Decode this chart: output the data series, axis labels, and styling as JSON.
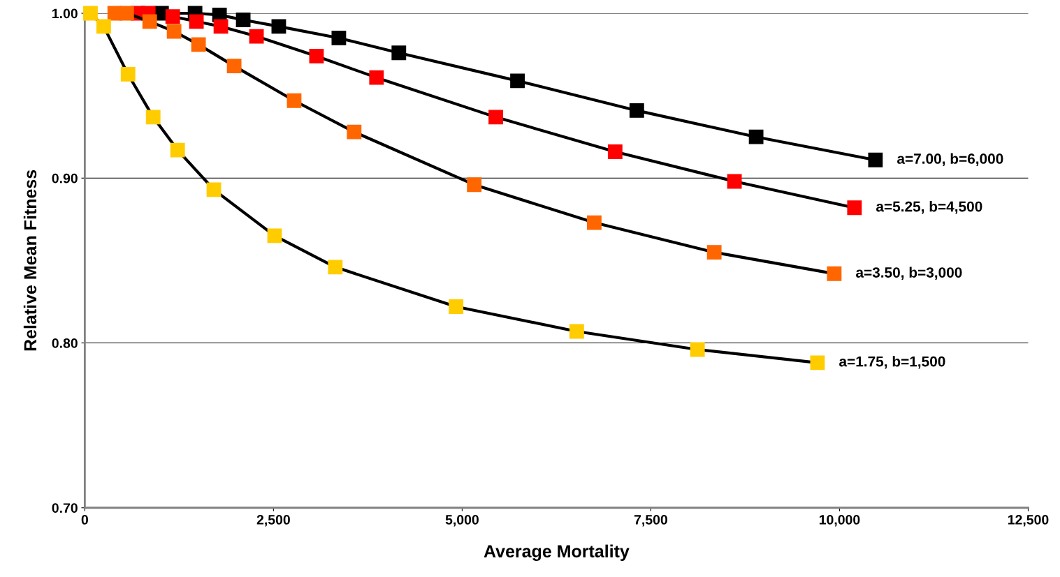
{
  "chart_data": {
    "type": "line",
    "xlabel": "Average Mortality",
    "ylabel": "Relative Mean Fitness",
    "xlim": [
      0,
      12500
    ],
    "ylim": [
      0.7,
      1.0
    ],
    "xticks": [
      0,
      {
        "value": 2500,
        "label": "2,500"
      },
      {
        "value": 5000,
        "label": "5,000"
      },
      {
        "value": 7500,
        "label": "7,500"
      },
      {
        "value": 10000,
        "label": "10,000"
      },
      {
        "value": 12500,
        "label": "12,500"
      }
    ],
    "yticks": [
      {
        "value": 0.7,
        "label": "0.70"
      },
      {
        "value": 0.8,
        "label": "0.80"
      },
      {
        "value": 0.9,
        "label": "0.90"
      },
      {
        "value": 1.0,
        "label": "1.00"
      }
    ],
    "grid": "y",
    "legend": false,
    "marker": "square",
    "line_style": "solid",
    "series": [
      {
        "name": "a=7.00, b=6,000",
        "color": "#000000",
        "x": [
          1017,
          1461,
          1785,
          2099,
          2570,
          3366,
          4161,
          5733,
          7314,
          8895,
          10476
        ],
        "values": [
          1.0,
          1.0,
          0.999,
          0.996,
          0.992,
          0.985,
          0.976,
          0.959,
          0.941,
          0.925,
          0.911
        ]
      },
      {
        "name": "a=5.25, b=4,500",
        "color": "#ff0000",
        "x": [
          703,
          841,
          1165,
          1479,
          1803,
          2275,
          3070,
          3865,
          5446,
          7027,
          8608,
          10198
        ],
        "values": [
          1.0,
          1.0,
          0.998,
          0.995,
          0.992,
          0.986,
          0.974,
          0.961,
          0.937,
          0.916,
          0.898,
          0.882
        ]
      },
      {
        "name": "a=3.50, b=3,000",
        "color": "#ff6600",
        "x": [
          397,
          555,
          860,
          1183,
          1507,
          1979,
          2774,
          3569,
          5160,
          6750,
          8340,
          9930
        ],
        "values": [
          1.0,
          1.0,
          0.995,
          0.989,
          0.981,
          0.968,
          0.947,
          0.928,
          0.896,
          0.873,
          0.855,
          0.842
        ]
      },
      {
        "name": "a=1.75, b=1,500",
        "color": "#ffcc00",
        "x": [
          75,
          250,
          573,
          906,
          1230,
          1710,
          2515,
          3319,
          4919,
          6518,
          8118,
          9708
        ],
        "values": [
          1.0,
          0.992,
          0.963,
          0.937,
          0.917,
          0.893,
          0.865,
          0.846,
          0.822,
          0.807,
          0.796,
          0.788
        ]
      }
    ]
  }
}
